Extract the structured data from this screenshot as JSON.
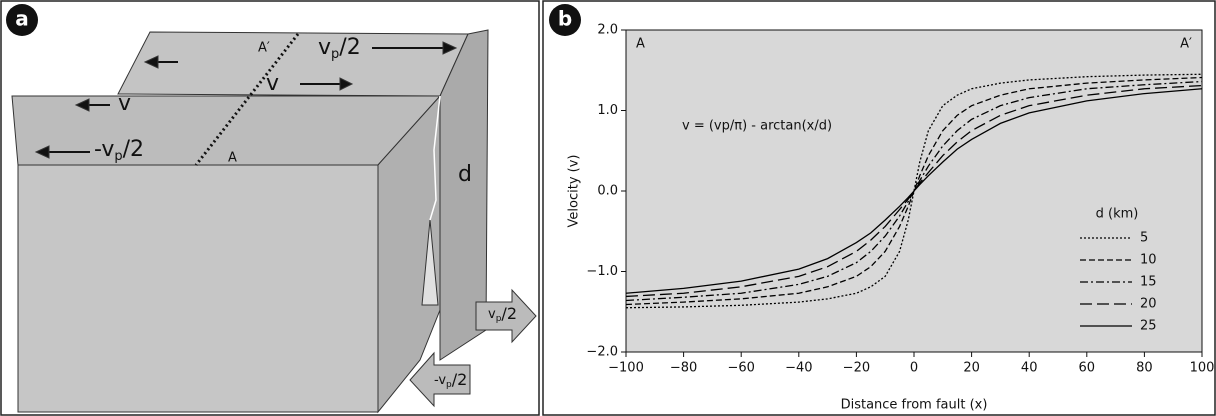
{
  "diagram": {
    "panel_label": "a",
    "a_prime": "A′",
    "a": "A",
    "v_top": "v",
    "v_left": "v",
    "d": "d",
    "vp_half_top": {
      "main": "v",
      "sub": "p",
      "rest": "/2"
    },
    "neg_vp_half": {
      "main": "-v",
      "sub": "p",
      "rest": "/2"
    },
    "arrow_right": {
      "main": "v",
      "sub": "p",
      "rest": "/2"
    },
    "arrow_left": {
      "main": "-v",
      "sub": "p",
      "rest": "/2"
    }
  },
  "chart_data": {
    "type": "line",
    "panel_label": "b",
    "xlabel": "Distance from fault (x)",
    "ylabel": "Velocity (v)",
    "annotations": {
      "left": "A",
      "right": "A′",
      "equation": "v = (vp/π) - arctan(x/d)"
    },
    "legend_title": "d (km)",
    "x": [
      -100,
      -80,
      -60,
      -40,
      -30,
      -20,
      -15,
      -10,
      -5,
      -2,
      0,
      2,
      5,
      10,
      15,
      20,
      30,
      40,
      60,
      80,
      100
    ],
    "series": [
      {
        "name": "5",
        "color": "#000000",
        "style": "dotted",
        "values": [
          -1.45,
          -1.44,
          -1.42,
          -1.38,
          -1.34,
          -1.27,
          -1.19,
          -1.06,
          -0.75,
          -0.36,
          0,
          0.36,
          0.75,
          1.06,
          1.19,
          1.27,
          1.34,
          1.38,
          1.42,
          1.44,
          1.45
        ]
      },
      {
        "name": "10",
        "color": "#000000",
        "style": "dashed",
        "values": [
          -1.41,
          -1.38,
          -1.34,
          -1.27,
          -1.19,
          -1.06,
          -0.94,
          -0.75,
          -0.44,
          -0.19,
          0,
          0.19,
          0.44,
          0.75,
          0.94,
          1.06,
          1.19,
          1.27,
          1.34,
          1.38,
          1.41
        ]
      },
      {
        "name": "15",
        "color": "#000000",
        "style": "dashdot",
        "values": [
          -1.36,
          -1.32,
          -1.27,
          -1.16,
          -1.06,
          -0.89,
          -0.75,
          -0.56,
          -0.31,
          -0.13,
          0,
          0.13,
          0.31,
          0.56,
          0.75,
          0.89,
          1.06,
          1.16,
          1.27,
          1.32,
          1.36
        ]
      },
      {
        "name": "20",
        "color": "#000000",
        "style": "longdash",
        "values": [
          -1.31,
          -1.27,
          -1.19,
          -1.06,
          -0.94,
          -0.75,
          -0.61,
          -0.44,
          -0.23,
          -0.1,
          0,
          0.1,
          0.23,
          0.44,
          0.61,
          0.75,
          0.94,
          1.06,
          1.19,
          1.27,
          1.31
        ]
      },
      {
        "name": "25",
        "color": "#000000",
        "style": "solid",
        "values": [
          -1.27,
          -1.21,
          -1.12,
          -0.97,
          -0.84,
          -0.64,
          -0.52,
          -0.36,
          -0.19,
          -0.08,
          0,
          0.08,
          0.19,
          0.36,
          0.52,
          0.64,
          0.84,
          0.97,
          1.12,
          1.21,
          1.27
        ]
      }
    ],
    "xlim": [
      -100,
      100
    ],
    "xticks": [
      {
        "value": -100,
        "label": "−100"
      },
      {
        "value": -80,
        "label": "−80"
      },
      {
        "value": -60,
        "label": "−60"
      },
      {
        "value": -40,
        "label": "−40"
      },
      {
        "value": -20,
        "label": "−20"
      },
      0,
      20,
      40,
      60,
      80,
      100
    ],
    "ylim": [
      -2,
      2
    ],
    "yticks": [
      {
        "value": -2,
        "label": "−2.0"
      },
      {
        "value": -1,
        "label": "−1.0"
      },
      {
        "value": 0,
        "label": "0.0"
      },
      {
        "value": 1,
        "label": "1.0"
      },
      {
        "value": 2,
        "label": "2.0"
      }
    ],
    "grid": false,
    "legend": "lower right",
    "plot_background": "#d8d8d8"
  }
}
